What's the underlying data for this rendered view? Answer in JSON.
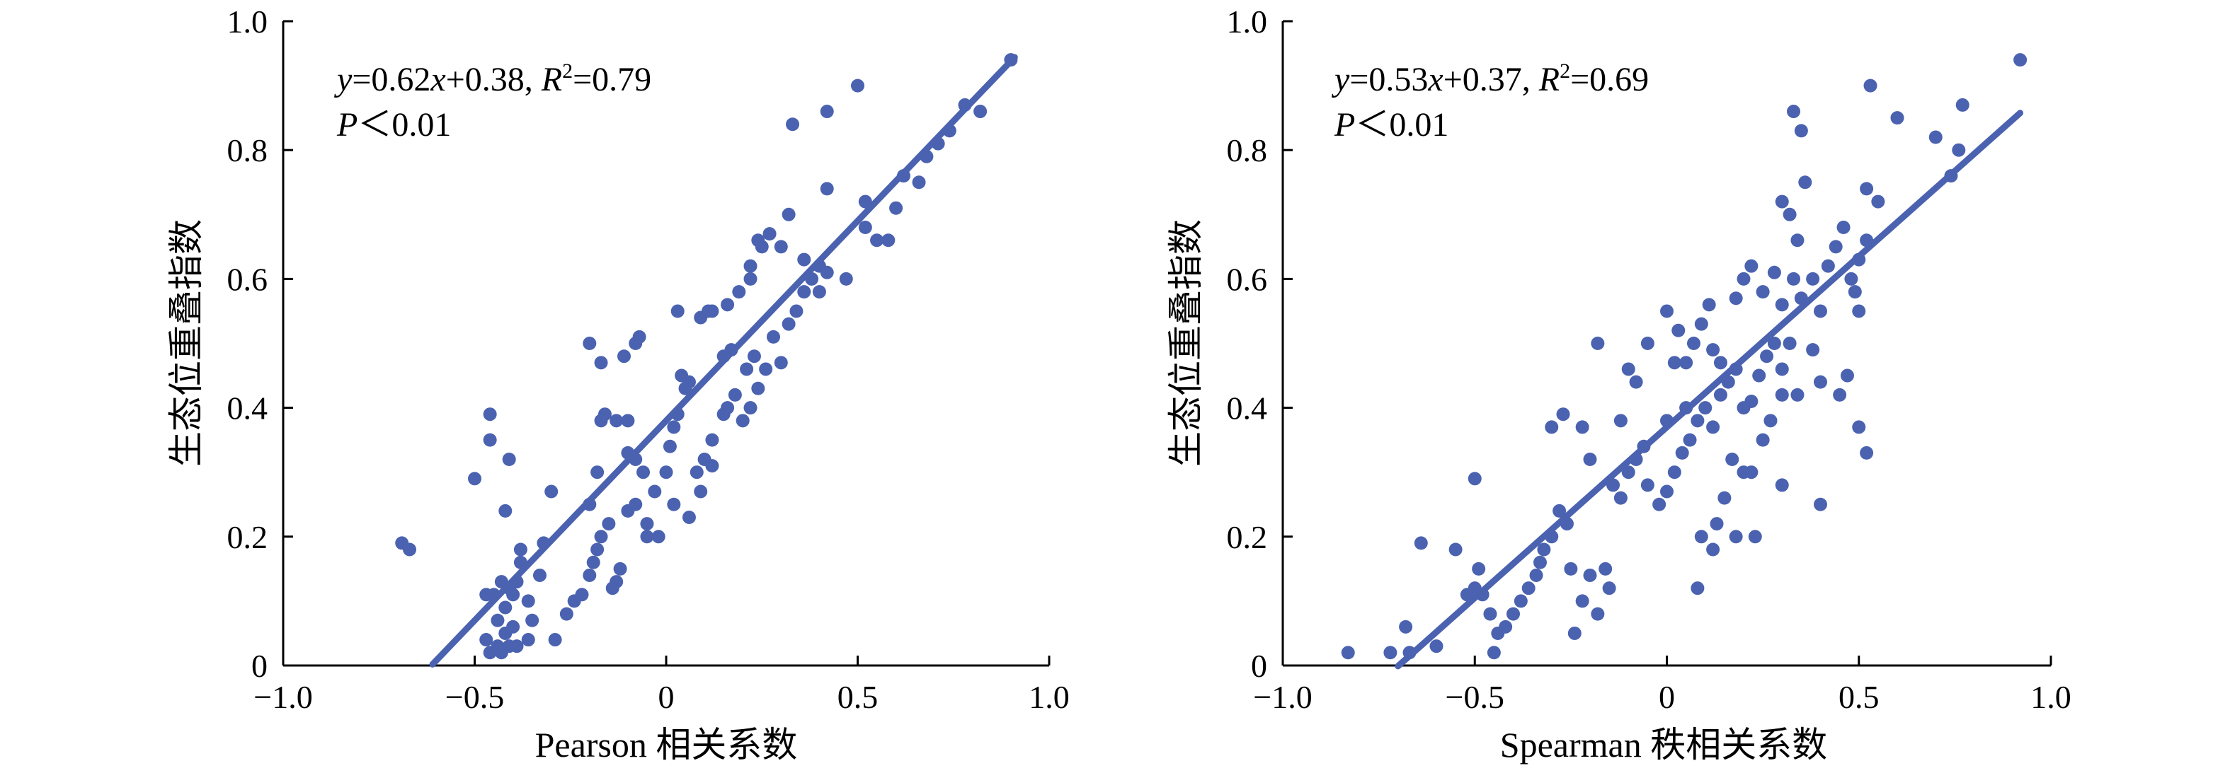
{
  "chart_data": [
    {
      "type": "scatter",
      "xlabel": "Pearson 相关系数",
      "ylabel": "生态位重叠指数",
      "xlim": [
        -1.0,
        1.0
      ],
      "ylim": [
        0,
        1.0
      ],
      "xticks": [
        "−1.0",
        "−0.5",
        "0",
        "0.5",
        "1.0"
      ],
      "yticks": [
        "0",
        "0.2",
        "0.4",
        "0.6",
        "0.8",
        "1.0"
      ],
      "annotation": {
        "y": "y",
        "eq1": "=0.62",
        "x": "x",
        "eq2": "+0.38, ",
        "R": "R",
        "sup": "2",
        "eq3": "=0.79",
        "P": "P",
        "ptext": "＜0.01"
      },
      "fit": {
        "slope": 0.62,
        "intercept": 0.38,
        "x_range": [
          -0.61,
          0.91
        ]
      },
      "marker_color": "#4a62b0",
      "line_color": "#4a62b0",
      "points": [
        [
          -0.69,
          0.19
        ],
        [
          -0.67,
          0.18
        ],
        [
          -0.5,
          0.29
        ],
        [
          -0.46,
          0.39
        ],
        [
          -0.46,
          0.35
        ],
        [
          -0.41,
          0.32
        ],
        [
          -0.42,
          0.24
        ],
        [
          -0.3,
          0.27
        ],
        [
          -0.47,
          0.11
        ],
        [
          -0.45,
          0.11
        ],
        [
          -0.43,
          0.13
        ],
        [
          -0.41,
          0.12
        ],
        [
          -0.42,
          0.09
        ],
        [
          -0.4,
          0.11
        ],
        [
          -0.39,
          0.13
        ],
        [
          -0.38,
          0.16
        ],
        [
          -0.38,
          0.18
        ],
        [
          -0.36,
          0.1
        ],
        [
          -0.35,
          0.07
        ],
        [
          -0.33,
          0.14
        ],
        [
          -0.32,
          0.19
        ],
        [
          -0.44,
          0.07
        ],
        [
          -0.42,
          0.05
        ],
        [
          -0.4,
          0.06
        ],
        [
          -0.47,
          0.04
        ],
        [
          -0.46,
          0.02
        ],
        [
          -0.44,
          0.03
        ],
        [
          -0.43,
          0.02
        ],
        [
          -0.41,
          0.03
        ],
        [
          -0.39,
          0.03
        ],
        [
          -0.36,
          0.04
        ],
        [
          -0.29,
          0.04
        ],
        [
          -0.26,
          0.08
        ],
        [
          -0.24,
          0.1
        ],
        [
          -0.22,
          0.11
        ],
        [
          -0.2,
          0.14
        ],
        [
          -0.19,
          0.16
        ],
        [
          -0.18,
          0.18
        ],
        [
          -0.17,
          0.2
        ],
        [
          -0.15,
          0.22
        ],
        [
          -0.13,
          0.13
        ],
        [
          -0.12,
          0.15
        ],
        [
          -0.2,
          0.25
        ],
        [
          -0.18,
          0.3
        ],
        [
          -0.17,
          0.38
        ],
        [
          -0.16,
          0.39
        ],
        [
          -0.13,
          0.38
        ],
        [
          -0.1,
          0.38
        ],
        [
          -0.1,
          0.33
        ],
        [
          -0.08,
          0.32
        ],
        [
          -0.06,
          0.3
        ],
        [
          -0.1,
          0.24
        ],
        [
          -0.08,
          0.25
        ],
        [
          -0.05,
          0.22
        ],
        [
          -0.02,
          0.2
        ],
        [
          -0.03,
          0.27
        ],
        [
          0.0,
          0.3
        ],
        [
          0.01,
          0.34
        ],
        [
          0.02,
          0.37
        ],
        [
          0.03,
          0.39
        ],
        [
          0.05,
          0.43
        ],
        [
          0.04,
          0.45
        ],
        [
          0.06,
          0.44
        ],
        [
          -0.2,
          0.5
        ],
        [
          -0.17,
          0.47
        ],
        [
          -0.11,
          0.48
        ],
        [
          -0.08,
          0.5
        ],
        [
          -0.07,
          0.51
        ],
        [
          0.03,
          0.55
        ],
        [
          0.09,
          0.54
        ],
        [
          0.11,
          0.55
        ],
        [
          0.12,
          0.55
        ],
        [
          0.08,
          0.3
        ],
        [
          0.1,
          0.32
        ],
        [
          0.12,
          0.35
        ],
        [
          0.15,
          0.39
        ],
        [
          0.16,
          0.4
        ],
        [
          0.18,
          0.42
        ],
        [
          0.2,
          0.38
        ],
        [
          0.22,
          0.4
        ],
        [
          0.24,
          0.43
        ],
        [
          0.21,
          0.46
        ],
        [
          0.23,
          0.48
        ],
        [
          0.15,
          0.48
        ],
        [
          0.17,
          0.49
        ],
        [
          0.26,
          0.46
        ],
        [
          0.28,
          0.51
        ],
        [
          0.3,
          0.47
        ],
        [
          0.32,
          0.53
        ],
        [
          0.34,
          0.55
        ],
        [
          0.36,
          0.58
        ],
        [
          0.38,
          0.6
        ],
        [
          0.4,
          0.62
        ],
        [
          0.16,
          0.56
        ],
        [
          0.19,
          0.58
        ],
        [
          0.22,
          0.6
        ],
        [
          0.25,
          0.65
        ],
        [
          0.27,
          0.67
        ],
        [
          0.3,
          0.65
        ],
        [
          0.32,
          0.7
        ],
        [
          0.22,
          0.62
        ],
        [
          0.24,
          0.66
        ],
        [
          0.36,
          0.63
        ],
        [
          0.4,
          0.58
        ],
        [
          0.42,
          0.61
        ],
        [
          0.47,
          0.6
        ],
        [
          0.52,
          0.68
        ],
        [
          0.55,
          0.66
        ],
        [
          0.58,
          0.66
        ],
        [
          0.52,
          0.72
        ],
        [
          0.6,
          0.71
        ],
        [
          0.62,
          0.76
        ],
        [
          0.66,
          0.75
        ],
        [
          0.68,
          0.79
        ],
        [
          0.71,
          0.81
        ],
        [
          0.74,
          0.83
        ],
        [
          0.78,
          0.87
        ],
        [
          0.82,
          0.86
        ],
        [
          0.9,
          0.94
        ],
        [
          0.5,
          0.9
        ],
        [
          0.42,
          0.74
        ],
        [
          0.33,
          0.84
        ],
        [
          0.42,
          0.86
        ],
        [
          0.02,
          0.25
        ],
        [
          0.06,
          0.23
        ],
        [
          0.09,
          0.27
        ],
        [
          0.12,
          0.31
        ],
        [
          -0.05,
          0.2
        ],
        [
          -0.14,
          0.12
        ]
      ]
    },
    {
      "type": "scatter",
      "xlabel": "Spearman 秩相关系数",
      "ylabel": "生态位重叠指数",
      "xlim": [
        -1.0,
        1.0
      ],
      "ylim": [
        0,
        1.0
      ],
      "xticks": [
        "−1.0",
        "−0.5",
        "0",
        "0.5",
        "1.0"
      ],
      "yticks": [
        "0",
        "0.2",
        "0.4",
        "0.6",
        "0.8",
        "1.0"
      ],
      "annotation": {
        "y": "y",
        "eq1": "=0.53",
        "x": "x",
        "eq2": "+0.37, ",
        "R": "R",
        "sup": "2",
        "eq3": "=0.69",
        "P": "P",
        "ptext": "＜0.01"
      },
      "fit": {
        "slope": 0.53,
        "intercept": 0.37,
        "x_range": [
          -0.7,
          0.92
        ]
      },
      "marker_color": "#4a62b0",
      "line_color": "#4a62b0",
      "points": [
        [
          -0.83,
          0.02
        ],
        [
          -0.72,
          0.02
        ],
        [
          -0.68,
          0.06
        ],
        [
          -0.67,
          0.02
        ],
        [
          -0.64,
          0.19
        ],
        [
          -0.6,
          0.03
        ],
        [
          -0.55,
          0.18
        ],
        [
          -0.52,
          0.11
        ],
        [
          -0.5,
          0.29
        ],
        [
          -0.5,
          0.12
        ],
        [
          -0.49,
          0.15
        ],
        [
          -0.48,
          0.11
        ],
        [
          -0.46,
          0.08
        ],
        [
          -0.45,
          0.02
        ],
        [
          -0.44,
          0.05
        ],
        [
          -0.42,
          0.06
        ],
        [
          -0.4,
          0.08
        ],
        [
          -0.38,
          0.1
        ],
        [
          -0.36,
          0.12
        ],
        [
          -0.34,
          0.14
        ],
        [
          -0.32,
          0.18
        ],
        [
          -0.3,
          0.2
        ],
        [
          -0.28,
          0.24
        ],
        [
          -0.26,
          0.22
        ],
        [
          -0.24,
          0.05
        ],
        [
          -0.22,
          0.1
        ],
        [
          -0.2,
          0.14
        ],
        [
          -0.18,
          0.08
        ],
        [
          -0.16,
          0.15
        ],
        [
          -0.14,
          0.28
        ],
        [
          -0.12,
          0.26
        ],
        [
          -0.1,
          0.3
        ],
        [
          -0.08,
          0.32
        ],
        [
          -0.06,
          0.34
        ],
        [
          -0.05,
          0.28
        ],
        [
          -0.02,
          0.25
        ],
        [
          0.0,
          0.27
        ],
        [
          0.02,
          0.3
        ],
        [
          0.04,
          0.33
        ],
        [
          0.06,
          0.35
        ],
        [
          0.08,
          0.38
        ],
        [
          0.1,
          0.4
        ],
        [
          0.12,
          0.37
        ],
        [
          0.14,
          0.42
        ],
        [
          0.16,
          0.44
        ],
        [
          0.18,
          0.46
        ],
        [
          0.2,
          0.4
        ],
        [
          0.22,
          0.41
        ],
        [
          0.24,
          0.45
        ],
        [
          0.26,
          0.48
        ],
        [
          0.28,
          0.5
        ],
        [
          0.3,
          0.46
        ],
        [
          0.32,
          0.5
        ],
        [
          0.34,
          0.42
        ],
        [
          -0.3,
          0.37
        ],
        [
          -0.27,
          0.39
        ],
        [
          -0.22,
          0.37
        ],
        [
          -0.2,
          0.32
        ],
        [
          -0.12,
          0.38
        ],
        [
          -0.1,
          0.46
        ],
        [
          -0.08,
          0.44
        ],
        [
          -0.05,
          0.5
        ],
        [
          0.0,
          0.55
        ],
        [
          0.03,
          0.52
        ],
        [
          0.05,
          0.47
        ],
        [
          0.07,
          0.5
        ],
        [
          0.09,
          0.53
        ],
        [
          0.11,
          0.56
        ],
        [
          -0.18,
          0.5
        ],
        [
          0.02,
          0.47
        ],
        [
          0.12,
          0.49
        ],
        [
          0.14,
          0.47
        ],
        [
          0.18,
          0.57
        ],
        [
          0.2,
          0.6
        ],
        [
          0.22,
          0.62
        ],
        [
          0.25,
          0.58
        ],
        [
          0.28,
          0.61
        ],
        [
          0.3,
          0.56
        ],
        [
          0.33,
          0.6
        ],
        [
          0.35,
          0.57
        ],
        [
          0.38,
          0.6
        ],
        [
          0.4,
          0.55
        ],
        [
          0.42,
          0.62
        ],
        [
          0.44,
          0.65
        ],
        [
          0.46,
          0.68
        ],
        [
          0.48,
          0.6
        ],
        [
          0.5,
          0.63
        ],
        [
          0.52,
          0.66
        ],
        [
          0.55,
          0.72
        ],
        [
          0.3,
          0.72
        ],
        [
          0.32,
          0.7
        ],
        [
          0.34,
          0.66
        ],
        [
          0.36,
          0.75
        ],
        [
          0.52,
          0.74
        ],
        [
          0.53,
          0.9
        ],
        [
          0.33,
          0.86
        ],
        [
          0.35,
          0.83
        ],
        [
          0.6,
          0.85
        ],
        [
          0.7,
          0.82
        ],
        [
          0.74,
          0.76
        ],
        [
          0.77,
          0.87
        ],
        [
          0.92,
          0.94
        ],
        [
          0.76,
          0.8
        ],
        [
          0.49,
          0.58
        ],
        [
          0.5,
          0.55
        ],
        [
          0.38,
          0.49
        ],
        [
          0.4,
          0.44
        ],
        [
          0.3,
          0.42
        ],
        [
          0.27,
          0.38
        ],
        [
          0.25,
          0.35
        ],
        [
          0.2,
          0.3
        ],
        [
          0.17,
          0.32
        ],
        [
          0.15,
          0.26
        ],
        [
          0.13,
          0.22
        ],
        [
          0.18,
          0.2
        ],
        [
          0.09,
          0.2
        ],
        [
          0.08,
          0.12
        ],
        [
          0.12,
          0.18
        ],
        [
          0.23,
          0.2
        ],
        [
          0.3,
          0.28
        ],
        [
          0.45,
          0.42
        ],
        [
          0.5,
          0.37
        ],
        [
          0.52,
          0.33
        ],
        [
          0.47,
          0.45
        ],
        [
          0.4,
          0.25
        ],
        [
          0.22,
          0.3
        ],
        [
          -0.15,
          0.12
        ],
        [
          -0.25,
          0.15
        ],
        [
          -0.33,
          0.16
        ],
        [
          0.0,
          0.38
        ],
        [
          0.05,
          0.4
        ]
      ]
    }
  ]
}
